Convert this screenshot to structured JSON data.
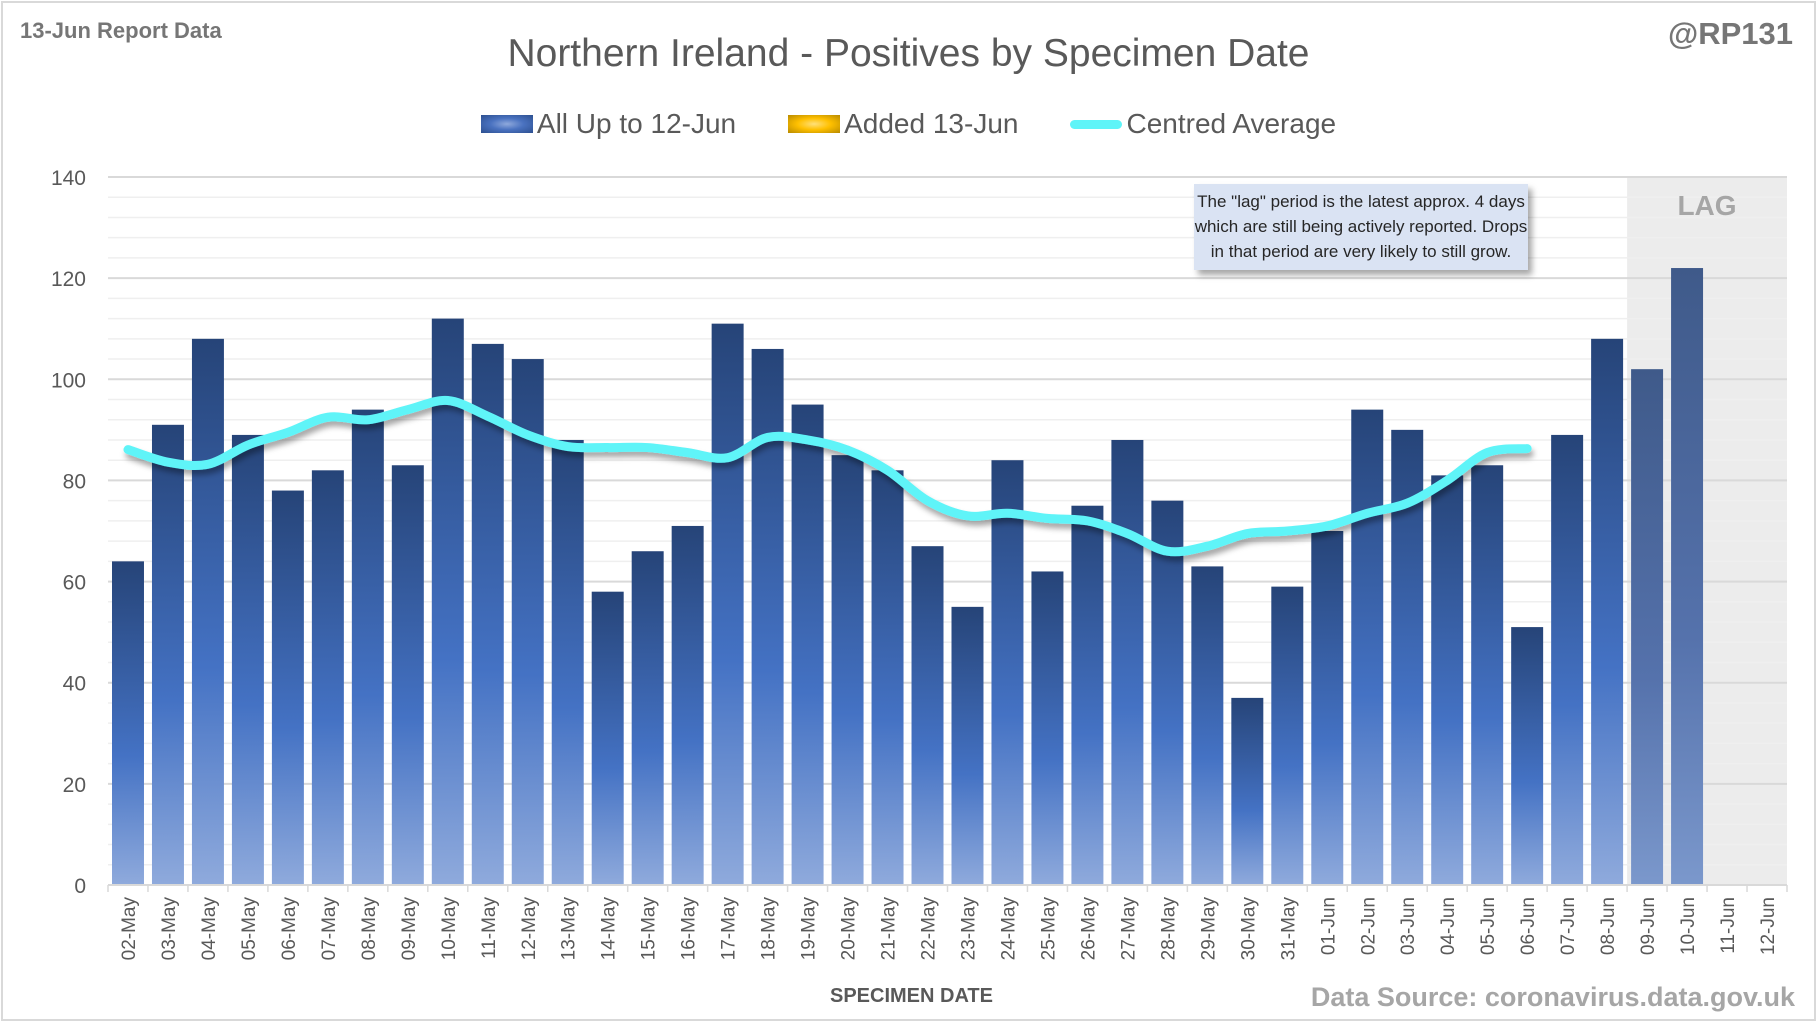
{
  "header": {
    "report_label": "13-Jun Report Data",
    "handle": "@RP131"
  },
  "note": {
    "lines": [
      "The \"lag\" period is the latest approx. 4 days",
      "which are still being actively reported.  Drops",
      "in that period are very likely to still grow."
    ],
    "lag_label": "LAG"
  },
  "footer": {
    "source": "Data Source: coronavirus.data.gov.uk"
  },
  "colors": {
    "bar_dark": "#264478",
    "bar_mid": "#4472c4",
    "bar_light": "#8faadc",
    "lag_bar_dark": "#3f5a8a",
    "lag_bar_light": "#7b98cc",
    "added": "#ffc000",
    "average_line": "#5ff4f8",
    "lag_shade": "#ececec"
  },
  "chart_data": {
    "type": "bar",
    "title": "Northern Ireland - Positives by Specimen Date",
    "xlabel": "SPECIMEN DATE",
    "ylabel": "",
    "ylim": [
      0,
      140
    ],
    "yticks": [
      0,
      20,
      40,
      60,
      80,
      100,
      120,
      140
    ],
    "grid": true,
    "legend": {
      "placement": "top-center",
      "entries": [
        "All Up to 12-Jun",
        "Added 13-Jun",
        "Centred Average"
      ]
    },
    "categories": [
      "02-May",
      "03-May",
      "04-May",
      "05-May",
      "06-May",
      "07-May",
      "08-May",
      "09-May",
      "10-May",
      "11-May",
      "12-May",
      "13-May",
      "14-May",
      "15-May",
      "16-May",
      "17-May",
      "18-May",
      "19-May",
      "20-May",
      "21-May",
      "22-May",
      "23-May",
      "24-May",
      "25-May",
      "26-May",
      "27-May",
      "28-May",
      "29-May",
      "30-May",
      "31-May",
      "01-Jun",
      "02-Jun",
      "03-Jun",
      "04-Jun",
      "05-Jun",
      "06-Jun",
      "07-Jun",
      "08-Jun",
      "09-Jun",
      "10-Jun",
      "11-Jun",
      "12-Jun"
    ],
    "series": [
      {
        "name": "All Up to 12-Jun",
        "type": "bar",
        "values": [
          64,
          91,
          108,
          89,
          78,
          82,
          94,
          83,
          112,
          107,
          104,
          88,
          58,
          66,
          71,
          111,
          106,
          95,
          85,
          82,
          67,
          55,
          84,
          62,
          75,
          88,
          76,
          63,
          37,
          59,
          70,
          94,
          90,
          81,
          83,
          51,
          89,
          108,
          102,
          122,
          0,
          0
        ]
      },
      {
        "name": "Added 13-Jun",
        "type": "bar",
        "values": [
          0,
          0,
          0,
          0,
          0,
          0,
          0,
          0,
          0,
          0,
          0,
          0,
          0,
          0,
          0,
          0,
          0,
          0,
          0,
          0,
          0,
          0,
          0,
          0,
          0,
          0,
          0,
          0,
          0,
          0,
          0,
          0,
          0,
          0,
          0,
          0,
          0,
          0,
          0,
          0,
          0,
          0
        ]
      },
      {
        "name": "Centred Average",
        "type": "line",
        "values": [
          86.1,
          83.6,
          83.2,
          87.0,
          89.5,
          92.5,
          92.0,
          94.0,
          95.8,
          92.7,
          89.0,
          86.7,
          86.5,
          86.5,
          85.5,
          84.5,
          88.5,
          88.0,
          86.0,
          82.0,
          76.0,
          73.0,
          73.5,
          72.5,
          72.0,
          69.5,
          66.0,
          67.0,
          69.5,
          70.0,
          71.0,
          73.5,
          75.5,
          80.0,
          85.5,
          86.3,
          null,
          null,
          null,
          null,
          null,
          null
        ]
      }
    ],
    "lag_categories": [
      "09-Jun",
      "10-Jun",
      "11-Jun",
      "12-Jun"
    ]
  }
}
